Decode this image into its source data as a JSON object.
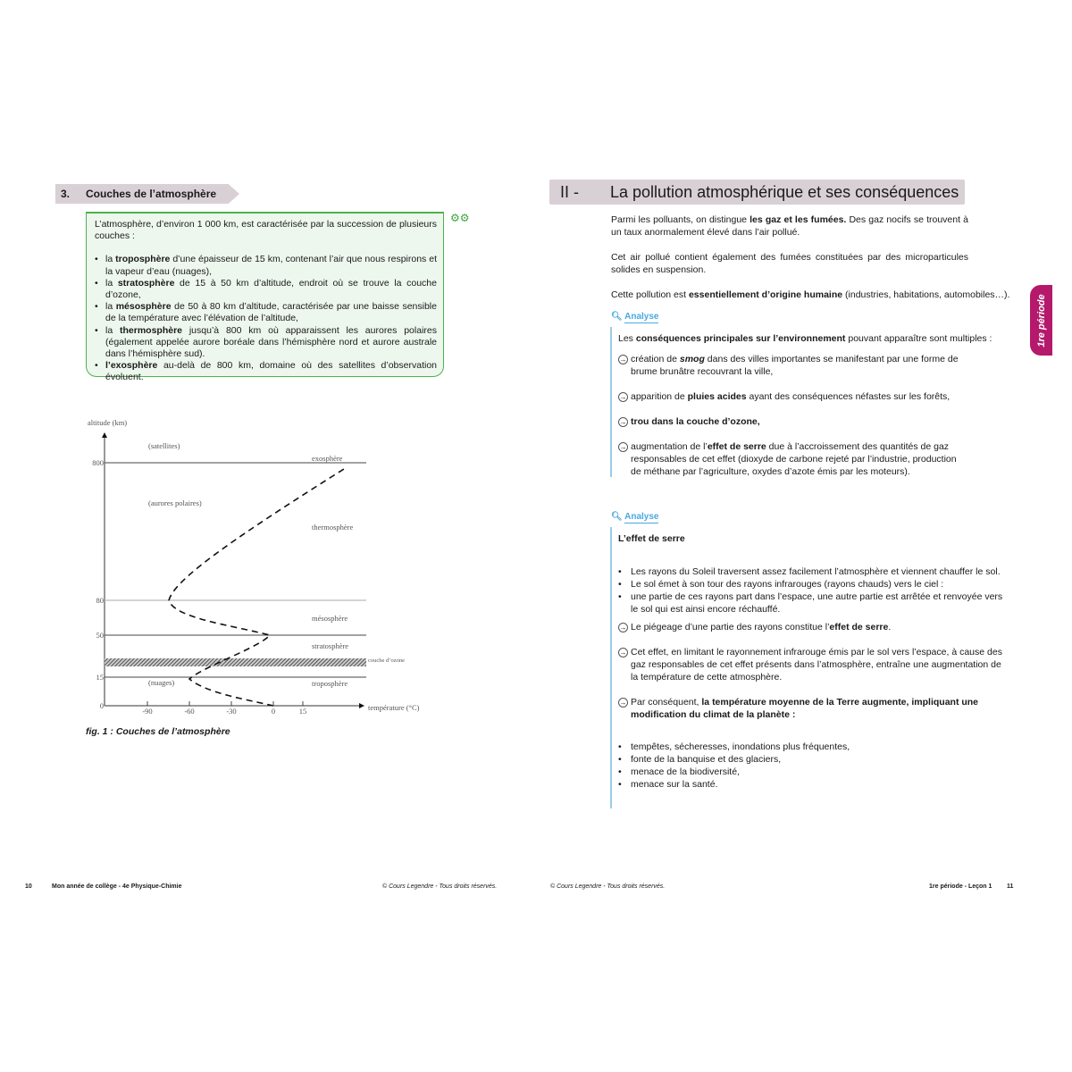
{
  "left": {
    "section": {
      "number": "3.",
      "title": "Couches de l’atmosphère"
    },
    "box": {
      "intro": "L’atmosphère, d’environ 1 000 km, est caractérisée par la succession de plusieurs couches :",
      "items": [
        {
          "pre": "la ",
          "b": "troposphère",
          "post": " d’une épaisseur de 15 km, contenant l’air que nous respirons et la vapeur d’eau (nuages),"
        },
        {
          "pre": "la ",
          "b": "stratosphère",
          "post": " de 15 à 50 km d’altitude, endroit où se trouve la couche d’ozone,"
        },
        {
          "pre": "la ",
          "b": "mésosphère",
          "post": " de 50 à 80 km d’altitude, caractérisée par une baisse sensible de la température avec l’élévation de l’altitude,"
        },
        {
          "pre": "la ",
          "b": "thermosphère",
          "post": " jusqu’à 800 km où apparaissent les aurores polaires (également appelée aurore boréale dans l’hémisphère nord et aurore australe dans l’hémisphère sud)."
        },
        {
          "pre": "",
          "b": "l’exosphère",
          "post": " au-delà de 800 km, domaine où des satellites d’observation évoluent."
        }
      ]
    },
    "figure": {
      "y_label": "altitude (km)",
      "x_label": "température (°C)",
      "y_ticks": [
        "0",
        "15",
        "50",
        "80",
        "800"
      ],
      "x_ticks": [
        "-90",
        "-60",
        "-30",
        "0",
        "15"
      ],
      "layers": [
        "exosphère",
        "thermosphère",
        "mésosphère",
        "stratosphère",
        "troposphère"
      ],
      "notes": [
        "(satellites)",
        "(aurores polaires)",
        "(nuages)"
      ],
      "ozone": "couche d’ozone",
      "caption": "fig. 1 : Couches de l’atmosphère"
    }
  },
  "right": {
    "heading": {
      "number": "II -",
      "title": "La pollution atmosphérique et ses conséquences"
    },
    "p1": {
      "a": "Parmi les polluants, on distingue ",
      "b": "les gaz et les fumées.",
      "c": " Des gaz nocifs se trouvent à un taux anormalement élevé dans l’air pollué."
    },
    "p2": "Cet air pollué contient également des fumées constituées par des microparticules solides en suspension.",
    "p3": {
      "a": "Cette pollution est ",
      "b": "essentiellement d’origine humaine",
      "c": " (industries, habitations, automobiles…)."
    },
    "analyse1": {
      "label": "Analyse",
      "intro_a": "Les ",
      "intro_b": "conséquences principales sur l’environnement",
      "intro_c": " pouvant apparaître sont multiples :",
      "i1": {
        "a": "création de ",
        "b": "smog",
        "c": " dans des villes importantes se manifestant par une forme de brume brunâtre recouvrant la ville,"
      },
      "i2": {
        "a": "apparition de ",
        "b": "pluies acides",
        "c": " ayant des conséquences néfastes sur les forêts,"
      },
      "i3": {
        "b": "trou dans la couche d’ozone,"
      },
      "i4": {
        "a": "augmentation de l’",
        "b": "effet de serre",
        "c": " due à l’accroissement des quantités de gaz responsables de cet effet (dioxyde de carbone rejeté par l’industrie, production de méthane par l’agriculture, oxydes d’azote émis par les moteurs)."
      }
    },
    "analyse2": {
      "label": "Analyse",
      "title": "L’effet de serre",
      "bullets": [
        "Les rayons du Soleil traversent assez facilement l’atmosphère et viennent chauffer le sol.",
        "Le sol émet à son tour des rayons infrarouges (rayons chauds) vers le ciel :",
        "une partie de ces rayons part dans l’espace, une autre partie est arrêtée et renvoyée vers le sol qui est ainsi encore réchauffé."
      ],
      "a1": {
        "a": "Le piégeage d’une partie des rayons constitue l’",
        "b": "effet de serre",
        "c": "."
      },
      "a2": "Cet effet, en limitant le rayonnement infrarouge émis par le sol vers l’espace, à cause des gaz responsables de cet effet présents dans l’atmosphère, entraîne une augmentation de la température de cette atmosphère.",
      "a3": {
        "a": "Par conséquent, ",
        "b": "la température moyenne de la Terre augmente, impliquant une modification du climat de la planète :"
      },
      "bullets2": [
        "tempêtes, sécheresses, inondations plus fréquentes,",
        "fonte de la banquise et des glaciers,",
        "menace de la biodiversité,",
        "menace sur la santé."
      ]
    },
    "tab": "1re période"
  },
  "footer": {
    "left_page": "10",
    "left_title": "Mon année de collège - 4e Physique-Chimie",
    "copyright": "© Cours Legendre - Tous droits réservés.",
    "right_title": "1re période - Leçon 1",
    "right_page": "11"
  },
  "colors": {
    "section_bg": "#d9d0d6",
    "box_border": "#4cb34c",
    "box_bg": "#eef7ee",
    "analyse": "#4aa8e0",
    "tab": "#b5196b"
  }
}
